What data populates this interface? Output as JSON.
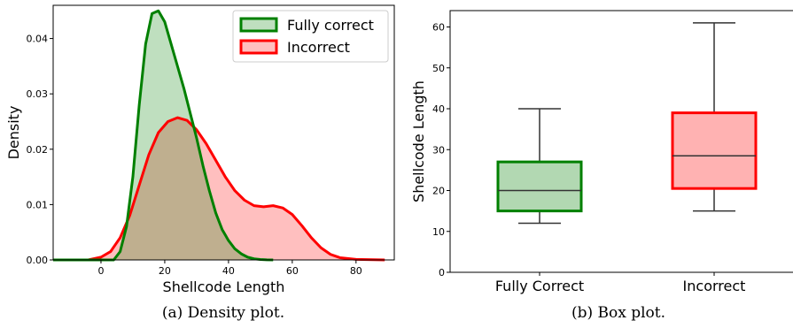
{
  "chart_data": [
    {
      "type": "area",
      "caption": "(a) Density plot.",
      "xlabel": "Shellcode Length",
      "ylabel": "Density",
      "xlim": [
        -15,
        92
      ],
      "ylim": [
        0,
        0.046
      ],
      "xticks": [
        0,
        20,
        40,
        60,
        80
      ],
      "yticks": [
        0.0,
        0.01,
        0.02,
        0.03,
        0.04
      ],
      "legend_position": "top-right",
      "series": [
        {
          "name": "Fully correct",
          "line_color": "#008000",
          "fill_color": "#008000",
          "x": [
            -15,
            4,
            6,
            8,
            10,
            12,
            14,
            16,
            18,
            20,
            22,
            24,
            26,
            28,
            30,
            32,
            34,
            36,
            38,
            40,
            42,
            44,
            46,
            48,
            50,
            52,
            54
          ],
          "y": [
            0,
            0,
            0.0015,
            0.006,
            0.015,
            0.028,
            0.039,
            0.0445,
            0.045,
            0.043,
            0.039,
            0.035,
            0.031,
            0.0265,
            0.022,
            0.017,
            0.0125,
            0.0085,
            0.0055,
            0.0035,
            0.002,
            0.0011,
            0.0005,
            0.0002,
            8e-05,
            2e-05,
            0
          ]
        },
        {
          "name": "Incorrect",
          "line_color": "#ff0000",
          "fill_color": "#ff0000",
          "x": [
            -15,
            -4,
            0,
            3,
            6,
            9,
            12,
            15,
            18,
            21,
            24,
            27,
            30,
            33,
            36,
            39,
            42,
            45,
            48,
            51,
            54,
            57,
            60,
            63,
            66,
            69,
            72,
            75,
            80,
            89
          ],
          "y": [
            0,
            0,
            0.0005,
            0.0015,
            0.004,
            0.008,
            0.0135,
            0.019,
            0.023,
            0.025,
            0.0257,
            0.0252,
            0.0235,
            0.021,
            0.018,
            0.015,
            0.0125,
            0.0108,
            0.0098,
            0.0096,
            0.0098,
            0.0094,
            0.0082,
            0.0062,
            0.004,
            0.0022,
            0.001,
            0.0004,
            0.0001,
            0
          ]
        }
      ]
    },
    {
      "type": "box",
      "caption": "(b) Box plot.",
      "xlabel": "",
      "ylabel": "Shellcode Length",
      "ylim": [
        0,
        64
      ],
      "yticks": [
        0,
        10,
        20,
        30,
        40,
        50,
        60
      ],
      "categories": [
        "Fully Correct",
        "Incorrect"
      ],
      "boxes": [
        {
          "name": "Fully Correct",
          "whisker_low": 12,
          "q1": 15,
          "median": 20,
          "q3": 27,
          "whisker_high": 40,
          "edge_color": "#008000",
          "fill_color": "#b2d8b2"
        },
        {
          "name": "Incorrect",
          "whisker_low": 15,
          "q1": 20.5,
          "median": 28.5,
          "q3": 39,
          "whisker_high": 61,
          "edge_color": "#ff0000",
          "fill_color": "#ffb2b2"
        }
      ]
    }
  ]
}
